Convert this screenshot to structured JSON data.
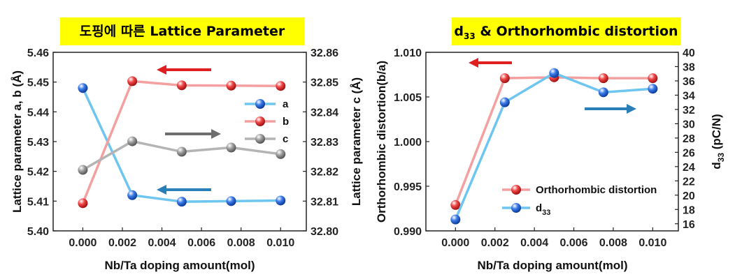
{
  "colors": {
    "title_bg": "#ffff00",
    "series_a": "#6ec6f0",
    "series_b": "#f4a0a0",
    "series_c": "#b4b4b4",
    "marker_a": "#1a56c8",
    "marker_b": "#e02020",
    "marker_c": "#8a8a8a",
    "arrow_red": "#e02020",
    "arrow_blue": "#2a7fb8",
    "arrow_grey": "#6e6e6e"
  },
  "chart_data": [
    {
      "type": "line",
      "title_kr": "도핑에 따른",
      "title_en": "Lattice Parameter",
      "xlabel": "Nb/Ta doping amount(mol)",
      "ylabel_left": "Lattice parameter a, b (Å)",
      "ylabel_right": "Lattice parameter c (Å)",
      "x": [
        0.0,
        0.0025,
        0.005,
        0.0075,
        0.01
      ],
      "xticks": [
        "0.000",
        "0.002",
        "0.004",
        "0.006",
        "0.008",
        "0.010"
      ],
      "xtick_values": [
        0,
        0.002,
        0.004,
        0.006,
        0.008,
        0.01
      ],
      "xlim": [
        -0.0015,
        0.0113
      ],
      "ylim_left": [
        5.4,
        5.46
      ],
      "yticks_left": [
        "5.40",
        "5.41",
        "5.42",
        "5.43",
        "5.44",
        "5.45",
        "5.46"
      ],
      "ylim_right": [
        32.8,
        32.86
      ],
      "yticks_right": [
        "32.80",
        "32.81",
        "32.82",
        "32.83",
        "32.84",
        "32.85",
        "32.86"
      ],
      "series": [
        {
          "name": "a",
          "axis": "left",
          "values": [
            5.448,
            5.412,
            5.4098,
            5.41,
            5.4102
          ]
        },
        {
          "name": "b",
          "axis": "left",
          "values": [
            5.4093,
            5.4503,
            5.4489,
            5.4488,
            5.4487
          ]
        },
        {
          "name": "c",
          "axis": "right",
          "values": [
            32.8205,
            32.8301,
            32.8266,
            32.828,
            32.8258
          ]
        }
      ],
      "legend": [
        "a",
        "b",
        "c"
      ],
      "legend_position": "right"
    },
    {
      "type": "line",
      "title_main": "d",
      "title_sub": "33",
      "title_rest": " & Orthorhombic distortion",
      "xlabel": "Nb/Ta doping amount(mol)",
      "ylabel_left": "Orthorhombic distortion(b/a)",
      "ylabel_right_main": "d",
      "ylabel_right_sub": "33",
      "ylabel_right_unit": " (pC/N)",
      "x": [
        0.0,
        0.0025,
        0.005,
        0.0075,
        0.01
      ],
      "xticks": [
        "0.000",
        "0.002",
        "0.004",
        "0.006",
        "0.008",
        "0.010"
      ],
      "xtick_values": [
        0,
        0.002,
        0.004,
        0.006,
        0.008,
        0.01
      ],
      "xlim": [
        -0.0015,
        0.0113
      ],
      "ylim_left": [
        0.99,
        1.01
      ],
      "yticks_left": [
        "0.990",
        "0.995",
        "1.000",
        "1.005",
        "1.010"
      ],
      "ylim_right": [
        15,
        40
      ],
      "yticks_right": [
        "16",
        "18",
        "20",
        "22",
        "24",
        "26",
        "28",
        "30",
        "32",
        "34",
        "36",
        "38",
        "40"
      ],
      "series": [
        {
          "name": "Orthorhombic distortion",
          "axis": "left",
          "values": [
            0.9929,
            1.0071,
            1.0072,
            1.0071,
            1.0071
          ]
        },
        {
          "name_main": "d",
          "name_sub": "33",
          "axis": "right",
          "values": [
            16.6,
            33.0,
            37.1,
            34.4,
            34.9
          ]
        }
      ],
      "legend_position": "bottom-right"
    }
  ]
}
